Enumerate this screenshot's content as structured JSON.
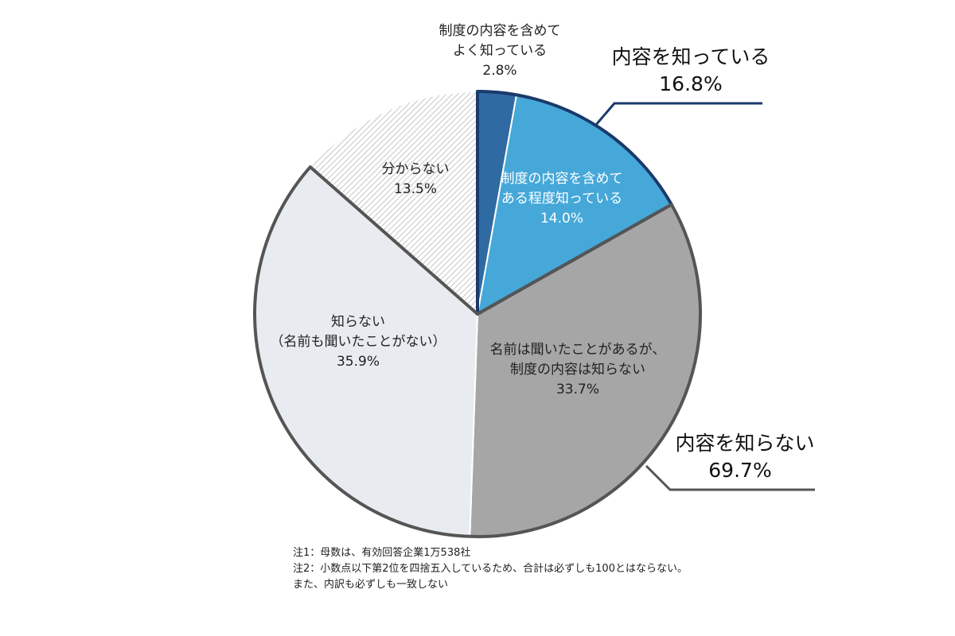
{
  "chart_data": {
    "type": "pie",
    "slices": [
      {
        "label": [
          "制度の内容を含めて",
          "よく知っている"
        ],
        "value": 2.8,
        "value_label": "2.8%",
        "color": "#2f6aa3"
      },
      {
        "label": [
          "制度の内容を含めて",
          "ある程度知っている"
        ],
        "value": 14.0,
        "value_label": "14.0%",
        "color": "#45a8d8"
      },
      {
        "label": [
          "名前は聞いたことがあるが、",
          "制度の内容は知らない"
        ],
        "value": 33.7,
        "value_label": "33.7%",
        "color": "#a6a6a6"
      },
      {
        "label": [
          "知らない",
          "（名前も聞いたことがない）"
        ],
        "value": 35.9,
        "value_label": "35.9%",
        "color": "#e8ecf0"
      },
      {
        "label": [
          "分からない"
        ],
        "value": 13.5,
        "value_label": "13.5%",
        "color": "hatched-light-gray"
      }
    ],
    "groups": [
      {
        "label": "内容を知っている",
        "value_label": "16.8%",
        "slices": [
          0,
          1
        ],
        "outline_color": "#1a3a6b"
      },
      {
        "label": "内容を知らない",
        "value_label": "69.7%",
        "slices": [
          2,
          3
        ],
        "outline_color": "#555555"
      }
    ],
    "start": "12 o'clock",
    "direction": "clockwise"
  },
  "notes": {
    "note1": "注1：母数は、有効回答企業1万538社",
    "note2": "注2：小数点以下第2位を四捨五入しているため、合計は必ずしも100とはならない。",
    "note3": "また、内訳も必ずしも一致しない"
  }
}
